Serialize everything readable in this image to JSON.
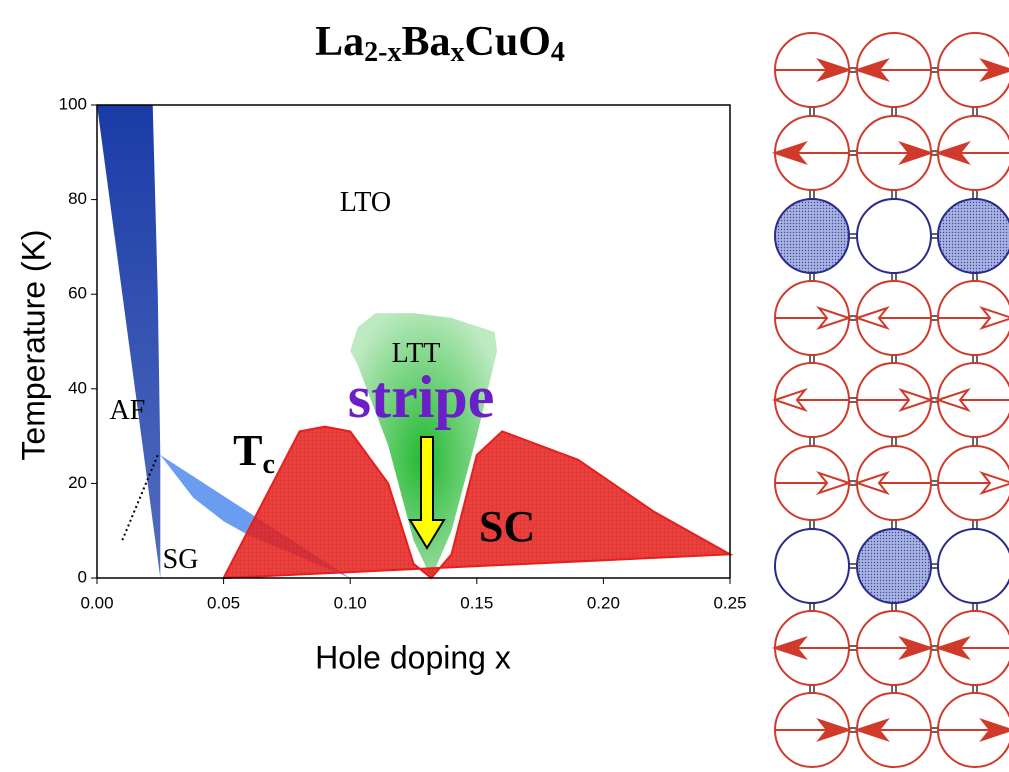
{
  "chart_data": {
    "type": "area",
    "title": [
      "La",
      "2-x",
      "Ba",
      "x",
      "CuO",
      "4"
    ],
    "x_label": "Hole doping x",
    "y_label": "Temperature (K)",
    "xlim": [
      0,
      0.25
    ],
    "ylim": [
      0,
      100
    ],
    "xticks": [
      {
        "value": 0,
        "label": "0.00"
      },
      0.05,
      {
        "value": 0.1,
        "label": "0.10"
      },
      0.15,
      {
        "value": 0.2,
        "label": "0.20"
      },
      0.25
    ],
    "yticks": [
      0,
      20,
      40,
      60,
      80,
      100
    ],
    "series": [
      {
        "color": "#1a3ca8",
        "x": [
          0,
          0.022,
          0.024,
          0.025,
          0.025
        ],
        "values": [
          100,
          100,
          60,
          26,
          0
        ]
      },
      {
        "color": "#6a9cf0",
        "x": [
          0.025,
          0.038,
          0.05,
          0.06,
          0.1
        ],
        "values": [
          26,
          17,
          12,
          9,
          0
        ]
      },
      {
        "color": "#22b830",
        "x": [
          0.1,
          0.103,
          0.11,
          0.125,
          0.14,
          0.157,
          0.158,
          0.15,
          0.14,
          0.132,
          0.125,
          0.115,
          0.103
        ],
        "values": [
          48,
          53,
          56,
          56,
          55,
          52,
          48,
          30,
          10,
          0,
          8,
          28,
          45
        ]
      },
      {
        "color": "#e8201c",
        "x": [
          0.05,
          0.08,
          0.09,
          0.1,
          0.115,
          0.125,
          0.132,
          0.14,
          0.15,
          0.16,
          0.19,
          0.22,
          0.25
        ],
        "values": [
          0,
          31,
          32,
          31,
          20,
          3,
          0,
          5,
          26,
          31,
          25,
          14,
          5
        ]
      },
      {
        "color": "#000000",
        "style": "dotted",
        "x": [
          0.01,
          0.024
        ],
        "values": [
          8,
          26
        ]
      }
    ],
    "annotations": [
      {
        "text": "LTO",
        "x": 0.106,
        "y": 79,
        "color": "#000000"
      },
      {
        "text": "AF",
        "x": 0.012,
        "y": 35,
        "color": "#000000"
      },
      {
        "text": "SG",
        "x": 0.033,
        "y": 3.5,
        "color": "#000000"
      },
      {
        "text": "LTT",
        "x": 0.126,
        "y": 47,
        "color": "#000000"
      },
      {
        "text": "stripe",
        "x": 0.128,
        "y": 37,
        "color": "#6a1fc9"
      },
      {
        "text": "SC",
        "x": 0.162,
        "y": 10,
        "color": "#000000"
      },
      {
        "text": [
          "T",
          "c"
        ],
        "x": 0.062,
        "y": 26,
        "color": "#000000"
      }
    ]
  }
}
